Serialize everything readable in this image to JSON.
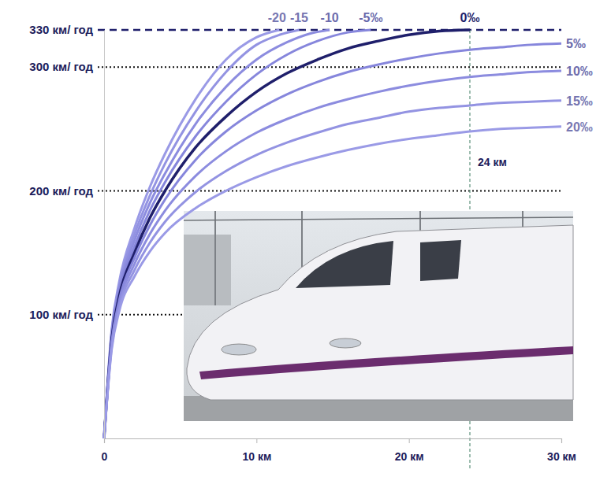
{
  "chart_data": {
    "type": "line",
    "xlim": [
      0,
      30
    ],
    "xticks": [
      0,
      {
        "value": 10,
        "label": "10 км"
      },
      {
        "value": 20,
        "label": "20 км"
      },
      {
        "value": 30,
        "label": "30 км"
      }
    ],
    "ylim": [
      0,
      330
    ],
    "yticks": [
      {
        "value": 100,
        "label": "100 км/ год"
      },
      {
        "value": 200,
        "label": "200 км/ год"
      },
      {
        "value": 300,
        "label": "300 км/ год"
      },
      {
        "value": 330,
        "label": "330 км/ год"
      }
    ],
    "grid": true,
    "series": [
      {
        "name": "-20",
        "color": "#9a9ae6",
        "x": [
          0,
          0.5,
          1,
          2,
          3,
          4,
          6,
          8,
          10,
          11.5
        ],
        "values": [
          0,
          88,
          127,
          170,
          203,
          230,
          274,
          306,
          324,
          330
        ]
      },
      {
        "name": "-15",
        "color": "#9393e2",
        "x": [
          0,
          0.5,
          1,
          2,
          3,
          4,
          6,
          8,
          10,
          11.5,
          12.8
        ],
        "values": [
          0,
          86,
          124,
          165,
          196,
          222,
          264,
          296,
          318,
          326,
          330
        ]
      },
      {
        "name": "-10",
        "color": "#8c8cdf",
        "x": [
          0,
          0.5,
          1,
          2,
          3,
          4,
          6,
          8,
          10,
          12,
          13.5,
          14.8
        ],
        "values": [
          0,
          84,
          121,
          160,
          190,
          214,
          254,
          284,
          306,
          320,
          327,
          330
        ]
      },
      {
        "name": "-5‰",
        "color": "#8686dc",
        "x": [
          0,
          0.5,
          1,
          2,
          3,
          4,
          6,
          8,
          10,
          12,
          14,
          16,
          17.5
        ],
        "values": [
          0,
          82,
          118,
          155,
          184,
          207,
          244,
          272,
          294,
          310,
          321,
          328,
          330
        ]
      },
      {
        "name": "0‰",
        "color": "#1f1f6b",
        "x": [
          0,
          0.5,
          1,
          2,
          3,
          4,
          6,
          8,
          10,
          12,
          14,
          16,
          18,
          20,
          22,
          24
        ],
        "values": [
          0,
          80,
          115,
          150,
          178,
          200,
          235,
          260,
          280,
          295,
          306,
          315,
          321,
          326,
          329,
          330
        ]
      },
      {
        "name": "5‰",
        "color": "#8686dc",
        "x": [
          0,
          0.5,
          1,
          2,
          3,
          4,
          6,
          8,
          10,
          12,
          14,
          16,
          18,
          20,
          22,
          24,
          26,
          28,
          30
        ],
        "values": [
          0,
          78,
          112,
          146,
          172,
          193,
          225,
          248,
          265,
          278,
          288,
          296,
          302,
          307,
          311,
          314,
          316,
          318,
          319
        ]
      },
      {
        "name": "10‰",
        "color": "#8c8cdf",
        "x": [
          0,
          0.5,
          1,
          2,
          3,
          4,
          6,
          8,
          10,
          12,
          14,
          16,
          18,
          20,
          22,
          24,
          26,
          28,
          30
        ],
        "values": [
          0,
          76,
          109,
          141,
          165,
          184,
          212,
          232,
          247,
          258,
          267,
          274,
          280,
          285,
          289,
          292,
          294,
          296,
          297
        ]
      },
      {
        "name": "15‰",
        "color": "#9393e2",
        "x": [
          0,
          0.5,
          1,
          2,
          3,
          4,
          6,
          8,
          10,
          12,
          14,
          16,
          18,
          20,
          22,
          24,
          26,
          28,
          30
        ],
        "values": [
          0,
          74,
          106,
          136,
          158,
          175,
          199,
          216,
          229,
          239,
          247,
          254,
          259,
          264,
          267,
          269,
          271,
          272,
          273
        ]
      },
      {
        "name": "20‰",
        "color": "#9a9ae6",
        "x": [
          0,
          0.5,
          1,
          2,
          3,
          4,
          6,
          8,
          10,
          12,
          14,
          16,
          18,
          20,
          22,
          24,
          26,
          28,
          30
        ],
        "values": [
          0,
          72,
          103,
          131,
          151,
          166,
          186,
          200,
          211,
          220,
          227,
          233,
          238,
          242,
          245,
          248,
          250,
          251,
          252
        ]
      }
    ],
    "annotations": [
      {
        "text": "24 км",
        "x": 24
      }
    ]
  }
}
